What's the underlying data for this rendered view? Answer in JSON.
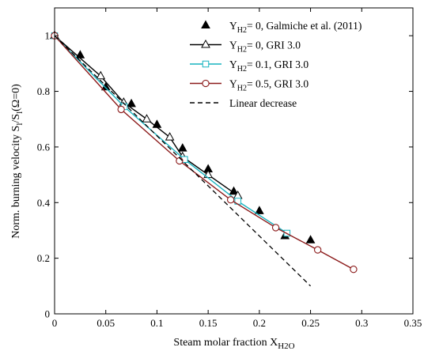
{
  "chart_data": {
    "type": "scatter",
    "xlabel_main": "Steam molar fraction X",
    "xlabel_sub": "H2O",
    "ylabel_parts": [
      "Norm. burning velocity S",
      "l",
      "/S",
      "l",
      "(Ω=0)"
    ],
    "xlim": [
      0,
      0.35
    ],
    "ylim": [
      0,
      1.1
    ],
    "x_ticks": [
      0,
      0.05,
      0.1,
      0.15,
      0.2,
      0.25,
      0.3,
      0.35
    ],
    "x_tick_labels": [
      "0",
      "0.05",
      "0.1",
      "0.15",
      "0.2",
      "0.25",
      "0.3",
      "0.35"
    ],
    "y_ticks": [
      0,
      0.2,
      0.4,
      0.6,
      0.8,
      1
    ],
    "y_tick_labels": [
      "0",
      "0.2",
      "0.4",
      "0.6",
      "0.8",
      "1"
    ],
    "grid": false,
    "legend_position": "top-right",
    "series": [
      {
        "key": "galmiche",
        "legend_prefix": "Y",
        "legend_sub": "H2",
        "legend_suffix": "= 0, Galmiche et al. (2011)",
        "style": "markers",
        "marker": "filled-triangle",
        "color": "#000000",
        "x": [
          0,
          0.025,
          0.05,
          0.075,
          0.1,
          0.125,
          0.15,
          0.175,
          0.2,
          0.225,
          0.25
        ],
        "y": [
          1.0,
          0.93,
          0.815,
          0.755,
          0.68,
          0.595,
          0.52,
          0.44,
          0.37,
          0.28,
          0.265
        ]
      },
      {
        "key": "gri_0",
        "legend_prefix": "Y",
        "legend_sub": "H2",
        "legend_suffix": "= 0, GRI 3.0",
        "style": "line-markers",
        "marker": "open-triangle",
        "color": "#000000",
        "x": [
          0,
          0.045,
          0.0675,
          0.09,
          0.1125,
          0.125,
          0.15,
          0.179
        ],
        "y": [
          1.0,
          0.855,
          0.76,
          0.7,
          0.635,
          0.565,
          0.5,
          0.425
        ]
      },
      {
        "key": "gri_01",
        "legend_prefix": "Y",
        "legend_sub": "H2",
        "legend_suffix": "= 0.1, GRI 3.0",
        "style": "line-markers",
        "marker": "open-square",
        "color": "#17b3bf",
        "x": [
          0,
          0.068,
          0.127,
          0.179,
          0.227
        ],
        "y": [
          1.0,
          0.745,
          0.555,
          0.405,
          0.29
        ]
      },
      {
        "key": "gri_05",
        "legend_prefix": "Y",
        "legend_sub": "H2",
        "legend_suffix": "= 0.5, GRI 3.0",
        "style": "line-markers",
        "marker": "open-circle",
        "color": "#8b1a1a",
        "x": [
          0,
          0.065,
          0.122,
          0.172,
          0.216,
          0.257,
          0.292
        ],
        "y": [
          1.0,
          0.735,
          0.55,
          0.41,
          0.31,
          0.23,
          0.16
        ]
      },
      {
        "key": "linear",
        "legend_prefix": "",
        "legend_sub": "",
        "legend_suffix": "Linear decrease",
        "style": "dashed",
        "marker": "none",
        "color": "#000000",
        "x": [
          0,
          0.25
        ],
        "y": [
          1.0,
          0.1
        ]
      }
    ]
  }
}
